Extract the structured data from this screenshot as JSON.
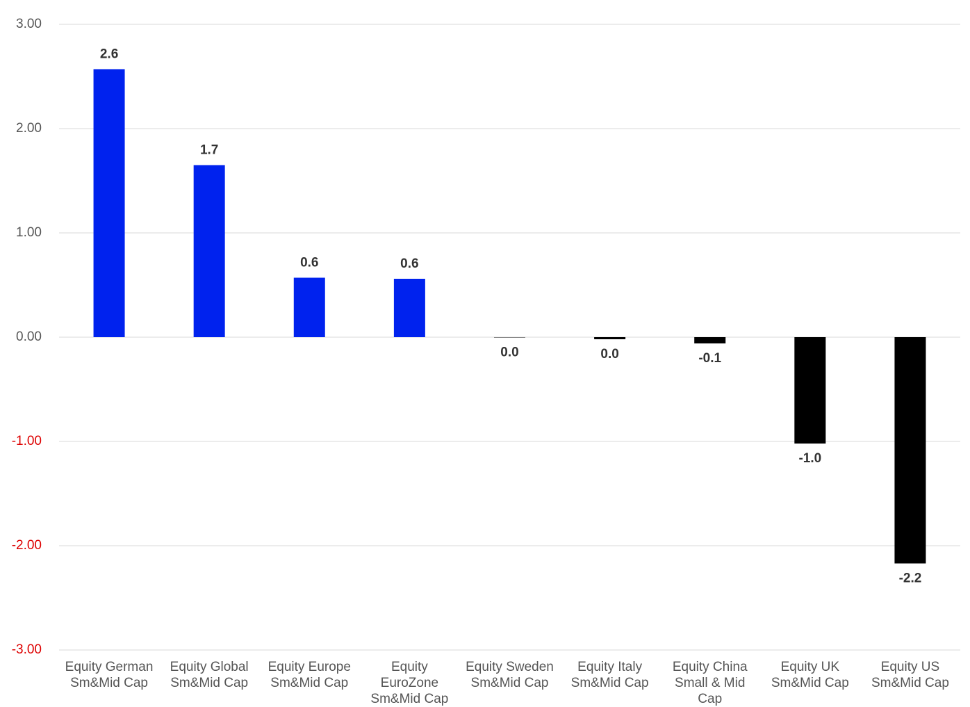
{
  "chart_data": {
    "type": "bar",
    "categories": [
      "Equity German Sm&Mid Cap",
      "Equity Global Sm&Mid Cap",
      "Equity Europe Sm&Mid Cap",
      "Equity EuroZone Sm&Mid Cap",
      "Equity Sweden Sm&Mid Cap",
      "Equity Italy Sm&Mid Cap",
      "Equity China Small & Mid Cap",
      "Equity UK Sm&Mid Cap",
      "Equity US Sm&Mid Cap"
    ],
    "values": [
      2.57,
      1.65,
      0.57,
      0.56,
      -0.004,
      -0.02,
      -0.06,
      -1.02,
      -2.17
    ],
    "value_labels": [
      "2.6",
      "1.7",
      "0.6",
      "0.6",
      "0.0",
      "0.0",
      "-0.1",
      "-1.0",
      "-2.2"
    ],
    "colors": [
      "#0022ee",
      "#0022ee",
      "#0022ee",
      "#0022ee",
      "#888888",
      "#000000",
      "#000000",
      "#000000",
      "#000000"
    ],
    "ylim": [
      -3,
      3
    ],
    "yticks": [
      {
        "value": -3,
        "label": "-3.00"
      },
      {
        "value": -2,
        "label": "-2.00"
      },
      {
        "value": -1,
        "label": "-1.00"
      },
      {
        "value": 0,
        "label": "0.00"
      },
      {
        "value": 1,
        "label": "1.00"
      },
      {
        "value": 2,
        "label": "2.00"
      },
      {
        "value": 3,
        "label": "3.00"
      }
    ],
    "tick_label_color": "#555555",
    "negative_tick_label_color": "#dd0000",
    "grid": true
  }
}
